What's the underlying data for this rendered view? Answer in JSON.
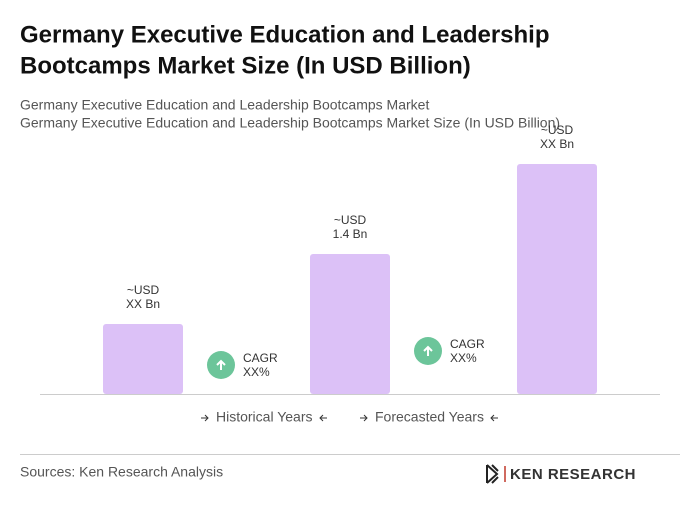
{
  "chart_data": {
    "type": "bar",
    "title": [
      "Germany Executive Education and Leadership",
      "Bootcamps Market Size (In USD Billion)"
    ],
    "subtitle": [
      "Germany Executive Education and Leadership Bootcamps Market",
      "Germany Executive Education and Leadership Bootcamps Market Size (In USD Billion)"
    ],
    "values": [
      0.7,
      1.4,
      2.3
    ],
    "value_labels": [
      [
        "~USD",
        "XX Bn"
      ],
      [
        "~USD",
        "1.4 Bn"
      ],
      [
        "~USD",
        "XX Bn"
      ]
    ],
    "color": "#dcc1f7",
    "annotations": [
      [
        "CAGR",
        "XX%"
      ],
      [
        "CAGR",
        "XX%"
      ]
    ],
    "annotation_color": "#6cc59a",
    "legend": [
      "Historical Years",
      "Forecasted Years"
    ],
    "source": "Sources: Ken Research Analysis",
    "logo": "KEN RESEARCH"
  }
}
